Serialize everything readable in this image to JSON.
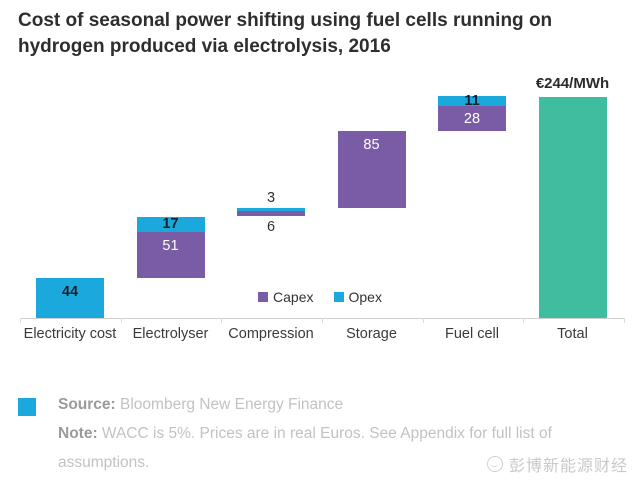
{
  "page": {
    "title_line1": "Cost of seasonal power shifting using fuel cells running on",
    "title_line2": "hydrogen produced via electrolysis, 2016"
  },
  "footer": {
    "source_label": "Source:",
    "source_text": " Bloomberg New Energy Finance",
    "note_label": "Note:",
    "note_text": " WACC is 5%. Prices are in real Euros. See Appendix for full list of assumptions.",
    "watermark_text": "彭博新能源财经"
  },
  "chart_data": {
    "type": "bar",
    "subtype": "waterfall-stacked",
    "title": "Cost of seasonal power shifting using fuel cells running on hydrogen produced via electrolysis, 2016",
    "unit": "EUR/MWh",
    "categories": [
      "Electricity cost",
      "Electrolyser",
      "Compression",
      "Storage",
      "Fuel cell",
      "Total"
    ],
    "series": [
      {
        "name": "Capex",
        "values": [
          0,
          51,
          6,
          85,
          28,
          0
        ]
      },
      {
        "name": "Opex",
        "values": [
          44,
          17,
          3,
          0,
          11,
          0
        ]
      },
      {
        "name": "Total",
        "values": [
          0,
          0,
          0,
          0,
          0,
          244
        ]
      }
    ],
    "bars": [
      {
        "category": "Electricity cost",
        "from_zero": false,
        "segments": [
          {
            "series": "opex",
            "value": 44
          }
        ]
      },
      {
        "category": "Electrolyser",
        "from_zero": false,
        "segments": [
          {
            "series": "capex",
            "value": 51
          },
          {
            "series": "opex",
            "value": 17
          }
        ]
      },
      {
        "category": "Compression",
        "from_zero": false,
        "segments": [
          {
            "series": "capex",
            "value": 6,
            "label_pos": "below"
          },
          {
            "series": "opex",
            "value": 3,
            "label_pos": "above"
          }
        ]
      },
      {
        "category": "Storage",
        "from_zero": false,
        "segments": [
          {
            "series": "capex",
            "value": 85
          }
        ]
      },
      {
        "category": "Fuel cell",
        "from_zero": false,
        "segments": [
          {
            "series": "capex",
            "value": 28
          },
          {
            "series": "opex",
            "value": 11
          }
        ]
      },
      {
        "category": "Total",
        "from_zero": true,
        "annotation": "€244/MWh",
        "segments": [
          {
            "series": "total",
            "value": 244,
            "show_label": false
          }
        ]
      }
    ],
    "colors": {
      "capex": "#7a5ca6",
      "opex": "#1ba8dc",
      "total": "#3fbd9e"
    },
    "label_colors": {
      "on_opex": "#16222b",
      "on_capex": "#ffffff",
      "outside": "#333333"
    },
    "legend": [
      {
        "label": "Capex",
        "series": "capex"
      },
      {
        "label": "Opex",
        "series": "opex"
      }
    ],
    "legend_position": "bottom-center",
    "grid": false,
    "ylim": [
      0,
      260
    ],
    "annotation_total": "€244/MWh"
  }
}
